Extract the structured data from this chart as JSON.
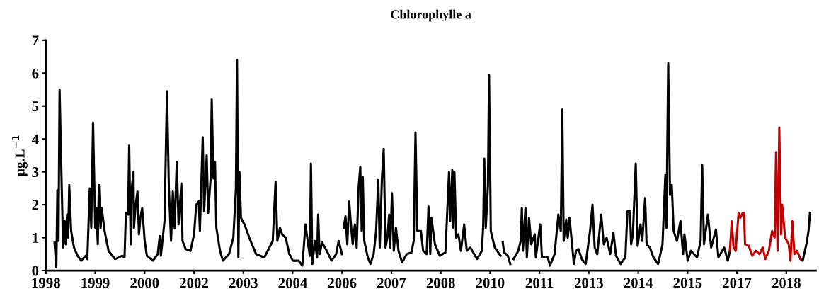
{
  "chart_data": {
    "type": "line",
    "title": "Chlorophylle a",
    "ylabel": "µg.L$^{−1}$",
    "xlim": [
      "1998-01-01",
      "2019-05-09"
    ],
    "ylim": [
      0,
      7
    ],
    "yticks": [
      0,
      1,
      2,
      3,
      4,
      5,
      6,
      7
    ],
    "xticks": [
      {
        "value": "1998-01-01",
        "label": "1998"
      },
      {
        "value": "1999-05-16",
        "label": "1999"
      },
      {
        "value": "2000-09-27",
        "label": "2000"
      },
      {
        "value": "2002-02-09",
        "label": "2002"
      },
      {
        "value": "2003-06-24",
        "label": "2003"
      },
      {
        "value": "2004-11-05",
        "label": "2004"
      },
      {
        "value": "2006-03-20",
        "label": "2006"
      },
      {
        "value": "2007-08-02",
        "label": "2007"
      },
      {
        "value": "2008-12-14",
        "label": "2008"
      },
      {
        "value": "2010-04-28",
        "label": "2010"
      },
      {
        "value": "2011-09-10",
        "label": "2011"
      },
      {
        "value": "2013-01-22",
        "label": "2013"
      },
      {
        "value": "2014-06-06",
        "label": "2014"
      },
      {
        "value": "2015-10-19",
        "label": "2015"
      },
      {
        "value": "2017-03-02",
        "label": "2017"
      },
      {
        "value": "2018-07-15",
        "label": "2018"
      }
    ],
    "grid": false,
    "legend": false,
    "marker": "none",
    "line_style": "solid",
    "series": [
      {
        "color": "#000000",
        "x": [
          "1998-03-30",
          "1998-04-17",
          "1998-04-28",
          "1998-05-09",
          "1998-05-20",
          "1998-06-11",
          "1998-06-25",
          "1998-07-10",
          "1998-07-21",
          "1998-08-04",
          "1998-08-15",
          "1998-08-26",
          "1998-09-14",
          "1998-10-13",
          "1998-11-18",
          "1998-12-25",
          "1999-02-10",
          "1999-02-25",
          "1999-03-22",
          "1999-04-06",
          "1999-04-24",
          "1999-05-16",
          "1999-05-27",
          "1999-06-11",
          "1999-06-22",
          "1999-07-10",
          "1999-07-21",
          "1999-08-19",
          "1999-09-28",
          "1999-12-03",
          "2000-02-14",
          "2000-03-08",
          "2000-03-22",
          "2000-04-13",
          "2000-04-24",
          "2000-05-09",
          "2000-05-20",
          "2000-06-07",
          "2000-06-11",
          "2000-06-29",
          "2000-07-17",
          "2000-08-01",
          "2000-08-15",
          "2000-09-03",
          "2000-09-28",
          "2000-10-20",
          "2000-12-21",
          "2001-02-07",
          "2001-02-28",
          "2001-03-11",
          "2001-04-17",
          "2001-05-12",
          "2001-05-31",
          "2001-06-22",
          "2001-07-10",
          "2001-07-28",
          "2001-08-19",
          "2001-09-06",
          "2001-10-05",
          "2001-10-16",
          "2001-11-18",
          "2002-01-05",
          "2002-02-10",
          "2002-03-04",
          "2002-03-30",
          "2002-04-10",
          "2002-05-09",
          "2002-05-23",
          "2002-06-18",
          "2002-07-03",
          "2002-07-28",
          "2002-08-08",
          "2002-08-26",
          "2002-09-10",
          "2002-09-24",
          "2002-10-31",
          "2002-11-29",
          "2003-01-30",
          "2003-03-15",
          "2003-04-10",
          "2003-04-21",
          "2003-05-05",
          "2003-05-16",
          "2003-05-31",
          "2003-07-06",
          "2003-08-23",
          "2003-10-31",
          "2004-01-23",
          "2004-04-17",
          "2004-05-16",
          "2004-06-03",
          "2004-06-29",
          "2004-07-21",
          "2004-08-26",
          "2004-10-02",
          "2004-11-07",
          "2005-01-05",
          "2005-02-10",
          "2005-02-25",
          "2005-03-15",
          "2005-04-10",
          "2005-04-28",
          "2005-05-09",
          "2005-05-23",
          "2005-06-18",
          "2005-07-10",
          "2005-07-21",
          "2005-08-04",
          "2005-08-30",
          "2005-10-16",
          "2005-12-03",
          "2006-01-19",
          "2006-02-14",
          "2006-03-19",
          "2006-03-28",
          "2006-04-06",
          "2006-04-24",
          "2006-05-12",
          "2006-05-31",
          "2006-06-18",
          "2006-07-06",
          "2006-07-28",
          "2006-08-15",
          "2006-09-03",
          "2006-09-21",
          "2006-10-05",
          "2006-10-16",
          "2006-10-31",
          "2006-12-06",
          "2007-01-01",
          "2007-02-03",
          "2007-02-28",
          "2007-03-22",
          "2007-04-06",
          "2007-04-28",
          "2007-05-16",
          "2007-06-03",
          "2007-06-22",
          "2007-07-10",
          "2007-07-21",
          "2007-08-08",
          "2007-08-26",
          "2007-09-17",
          "2007-10-13",
          "2007-11-18",
          "2008-01-05",
          "2008-02-21",
          "2008-03-15",
          "2008-04-02",
          "2008-04-21",
          "2008-05-27",
          "2008-06-18",
          "2008-07-24",
          "2008-08-12",
          "2008-08-30",
          "2008-09-10",
          "2008-10-16",
          "2008-12-03",
          "2009-01-30",
          "2009-03-08",
          "2009-03-19",
          "2009-04-10",
          "2009-04-21",
          "2009-05-01",
          "2009-05-20",
          "2009-06-11",
          "2009-07-06",
          "2009-08-08",
          "2009-09-03",
          "2009-10-09",
          "2009-12-17",
          "2010-02-03",
          "2010-02-17",
          "2010-02-28",
          "2010-03-15",
          "2010-04-06",
          "2010-04-17",
          "2010-05-05",
          "2010-06-14",
          "2010-08-12",
          "2010-08-23",
          "2010-09-03",
          "2010-09-17",
          "2010-10-24",
          "2010-11-18",
          "2010-12-05",
          "2010-12-21",
          "2011-02-07",
          "2011-03-04",
          "2011-03-15",
          "2011-03-26",
          "2011-04-21",
          "2011-05-05",
          "2011-05-27",
          "2011-06-18",
          "2011-07-24",
          "2011-08-04",
          "2011-09-17",
          "2011-10-05",
          "2011-12-03",
          "2011-12-25",
          "2012-02-10",
          "2012-03-19",
          "2012-04-13",
          "2012-04-28",
          "2012-05-12",
          "2012-06-07",
          "2012-06-22",
          "2012-07-10",
          "2012-08-08",
          "2012-08-23",
          "2012-09-14",
          "2012-10-09",
          "2012-11-11",
          "2012-12-21",
          "2013-02-03",
          "2013-02-28",
          "2013-03-22",
          "2013-04-17",
          "2013-05-27",
          "2013-06-22",
          "2013-07-21",
          "2013-08-26",
          "2013-09-28",
          "2013-10-24",
          "2013-12-10",
          "2014-01-27",
          "2014-02-17",
          "2014-03-15",
          "2014-03-26",
          "2014-04-13",
          "2014-05-12",
          "2014-05-31",
          "2014-06-29",
          "2014-07-17",
          "2014-08-15",
          "2014-08-30",
          "2014-10-02",
          "2014-11-07",
          "2014-12-25",
          "2015-02-07",
          "2015-03-08",
          "2015-03-19",
          "2015-04-06",
          "2015-04-24",
          "2015-05-12",
          "2015-05-31",
          "2015-07-03",
          "2015-08-08",
          "2015-09-03",
          "2015-09-17",
          "2015-10-20",
          "2015-11-22",
          "2016-01-23",
          "2016-02-28",
          "2016-03-15",
          "2016-04-02",
          "2016-05-12",
          "2016-06-14",
          "2016-08-01",
          "2016-08-26",
          "2016-10-24",
          "2016-11-29",
          "2016-12-21",
          "2017-12-14",
          "2018-12-06",
          "2018-12-28",
          "2019-02-03",
          "2019-02-25",
          "2019-03-11"
        ],
        "values": [
          0.85,
          0.1,
          2.45,
          0.9,
          5.5,
          2.5,
          0.7,
          1.5,
          0.8,
          1.7,
          1.0,
          2.6,
          1.2,
          0.7,
          0.45,
          0.3,
          0.45,
          0.35,
          2.5,
          1.3,
          4.5,
          1.3,
          1.9,
          0.8,
          2.6,
          1.3,
          1.9,
          1.2,
          0.6,
          0.35,
          0.45,
          0.4,
          1.75,
          1.7,
          3.8,
          0.8,
          2.5,
          3.0,
          1.3,
          2.0,
          2.4,
          1.1,
          1.6,
          1.9,
          0.9,
          0.45,
          0.3,
          0.5,
          1.05,
          0.45,
          1.5,
          5.45,
          2.5,
          0.9,
          2.4,
          1.3,
          3.3,
          1.4,
          2.65,
          0.9,
          0.65,
          0.6,
          1.1,
          2.0,
          2.1,
          1.2,
          4.05,
          1.8,
          3.5,
          1.75,
          2.8,
          5.2,
          2.8,
          3.3,
          1.3,
          0.6,
          0.3,
          0.5,
          1.0,
          2.5,
          6.4,
          0.4,
          3.0,
          1.6,
          1.4,
          1.0,
          0.5,
          0.4,
          0.9,
          2.7,
          0.9,
          1.3,
          1.1,
          1.0,
          0.5,
          0.3,
          0.3,
          0.15,
          0.7,
          1.4,
          0.8,
          0.45,
          3.25,
          0.2,
          0.9,
          0.4,
          1.7,
          0.5,
          0.85,
          0.6,
          0.3,
          0.5,
          0.9,
          0.5,
          null,
          1.3,
          1.65,
          0.8,
          2.1,
          1.4,
          0.8,
          1.4,
          0.7,
          2.5,
          3.15,
          1.2,
          2.85,
          0.9,
          0.4,
          0.2,
          0.5,
          1.2,
          2.75,
          0.7,
          2.8,
          3.7,
          0.7,
          1.0,
          1.7,
          0.7,
          2.35,
          0.6,
          1.3,
          0.6,
          0.25,
          0.5,
          0.55,
          0.9,
          4.2,
          1.2,
          1.2,
          0.6,
          0.5,
          1.95,
          0.5,
          1.6,
          0.8,
          0.45,
          0.55,
          3.0,
          1.5,
          3.05,
          1.3,
          3.0,
          1.0,
          1.1,
          0.6,
          1.4,
          0.6,
          0.7,
          0.35,
          0.6,
          1.35,
          3.4,
          1.3,
          2.6,
          5.95,
          1.2,
          0.7,
          0.45,
          null,
          0.85,
          0.55,
          0.45,
          0.2,
          null,
          0.35,
          0.6,
          0.9,
          1.9,
          0.6,
          1.9,
          0.4,
          1.6,
          0.8,
          1.1,
          0.4,
          1.4,
          0.4,
          0.4,
          0.15,
          0.5,
          1.7,
          1.2,
          4.9,
          0.9,
          1.55,
          1.0,
          1.6,
          0.7,
          0.2,
          0.6,
          0.65,
          0.35,
          0.2,
          1.2,
          2.0,
          0.7,
          0.5,
          1.7,
          0.8,
          1.0,
          0.5,
          1.15,
          0.45,
          0.2,
          0.4,
          1.8,
          1.8,
          0.8,
          1.1,
          3.25,
          0.75,
          1.4,
          0.9,
          2.2,
          0.8,
          0.7,
          0.4,
          0.2,
          0.8,
          2.9,
          1.3,
          6.3,
          2.3,
          2.6,
          1.2,
          0.9,
          1.5,
          0.5,
          1.1,
          0.3,
          0.6,
          0.4,
          0.9,
          3.2,
          0.8,
          1.7,
          0.7,
          1.25,
          0.4,
          0.7,
          0.3,
          0.6,
          null,
          0.35,
          0.3,
          0.8,
          1.2,
          1.75
        ]
      },
      {
        "color": "#c00000",
        "x": [
          "2016-12-21",
          "2017-01-08",
          "2017-01-27",
          "2017-02-17",
          "2017-03-19",
          "2017-04-06",
          "2017-04-28",
          "2017-05-12",
          "2017-05-23",
          "2017-06-29",
          "2017-08-04",
          "2017-09-10",
          "2017-10-16",
          "2017-11-18",
          "2017-12-14",
          "2018-01-19",
          "2018-02-21",
          "2018-03-19",
          "2018-04-02",
          "2018-04-17",
          "2018-05-05",
          "2018-05-23",
          "2018-06-03",
          "2018-07-03",
          "2018-08-08",
          "2018-08-26",
          "2018-09-14",
          "2018-10-05",
          "2018-10-31",
          "2018-12-06"
        ],
        "values": [
          0.6,
          1.5,
          0.7,
          0.6,
          1.75,
          1.6,
          1.75,
          1.75,
          0.8,
          0.75,
          0.45,
          0.6,
          0.5,
          0.7,
          0.35,
          0.6,
          1.2,
          1.0,
          3.6,
          0.6,
          4.35,
          1.1,
          2.0,
          1.0,
          0.8,
          0.3,
          1.5,
          0.5,
          0.6,
          0.35
        ]
      }
    ]
  }
}
